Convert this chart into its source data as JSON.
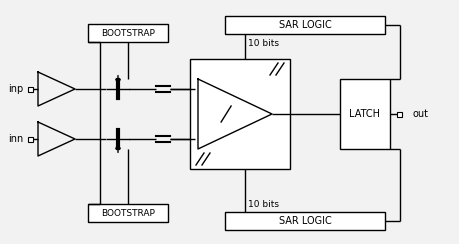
{
  "bg_color": "#f2f2f2",
  "labels": {
    "inp": "inp",
    "inn": "inn",
    "bootstrap": "BOOTSTRAP",
    "sar_logic": "SAR LOGIC",
    "latch": "LATCH",
    "out": "out",
    "bits_top": "10 bits",
    "bits_bot": "10 bits"
  },
  "figsize": [
    4.6,
    2.44
  ],
  "dpi": 100
}
